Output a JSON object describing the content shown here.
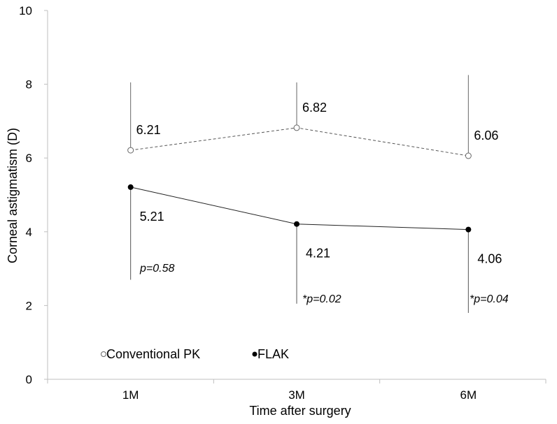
{
  "chart_data": {
    "type": "line",
    "title": "",
    "xlabel": "Time after surgery",
    "ylabel": "Corneal  astigmatism (D)",
    "categories": [
      "1M",
      "3M",
      "6M"
    ],
    "ylim": [
      0,
      10
    ],
    "yticks": [
      0,
      2,
      4,
      6,
      8,
      10
    ],
    "grid": false,
    "series": [
      {
        "name": "Conventional PK",
        "marker": "open-circle",
        "line_style": "dashed",
        "values": [
          6.21,
          6.82,
          6.06
        ],
        "labels": [
          "6.21",
          "6.82",
          "6.06"
        ],
        "error_upper": [
          8.05,
          8.05,
          8.25
        ],
        "color": "#555555"
      },
      {
        "name": "FLAK",
        "marker": "filled-circle",
        "line_style": "solid",
        "values": [
          5.21,
          4.21,
          4.06
        ],
        "labels": [
          "5.21",
          "4.21",
          "4.06"
        ],
        "error_lower": [
          2.7,
          2.05,
          1.8
        ],
        "color": "#000000"
      }
    ],
    "annotations": [
      "p=0.58",
      "*p=0.02",
      "*p=0.04"
    ],
    "legend": [
      "Conventional PK",
      "FLAK"
    ],
    "legend_placement": "bottom-left"
  }
}
